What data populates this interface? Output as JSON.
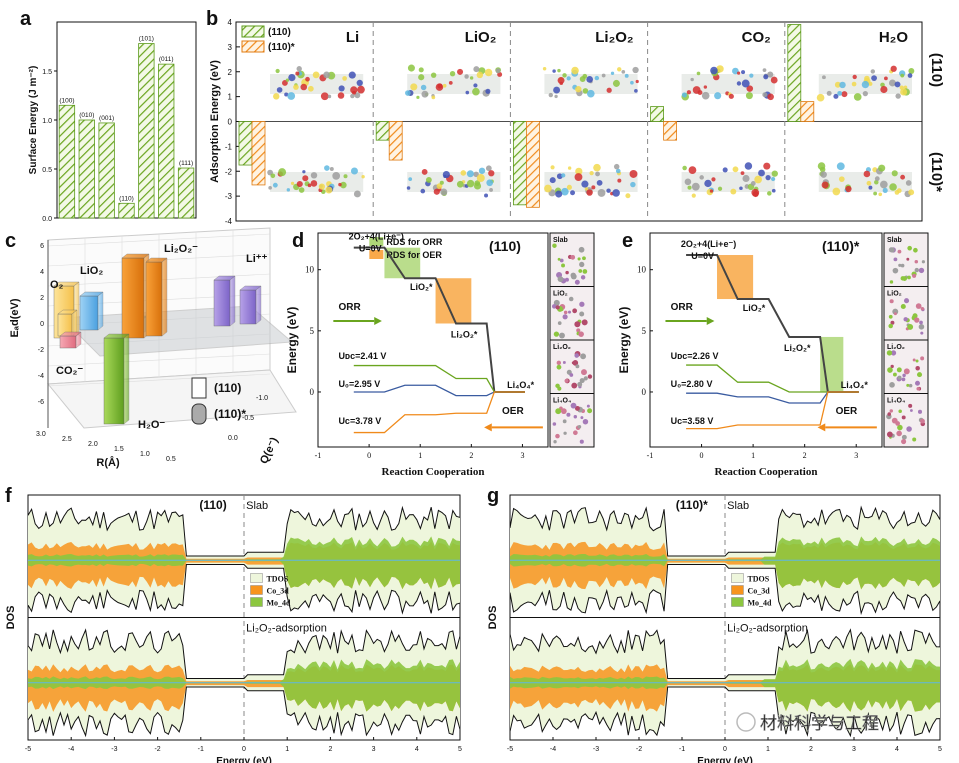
{
  "figure": {
    "watermark": "材料科学与工程",
    "panel_labels": [
      "a",
      "b",
      "c",
      "d",
      "e",
      "f",
      "g"
    ]
  },
  "colors": {
    "green": "#8cc63f",
    "orange": "#f7941d",
    "blue": "#3a5ba0",
    "grey": "#9e9e9e",
    "tdos_fill": "#eef6dc"
  },
  "chart_data": [
    {
      "id": "a",
      "type": "bar",
      "ylabel": "Surface Energy (J m⁻²)",
      "categories": [
        "(100)",
        "(010)",
        "(001)",
        "(110)",
        "(101)",
        "(011)",
        "(111)"
      ],
      "values": [
        1.15,
        1.0,
        0.97,
        0.15,
        1.78,
        1.57,
        0.51
      ],
      "ylim": [
        0,
        2.0
      ],
      "yticks": [
        "0.0",
        "0.5",
        "1.0",
        "1.5"
      ]
    },
    {
      "id": "b",
      "type": "bar",
      "ylabel": "Adsorption Energy (eV)",
      "columns": [
        "Li",
        "LiO₂",
        "Li₂O₂",
        "CO₂",
        "H₂O"
      ],
      "legend": [
        "(110)",
        "(110)*"
      ],
      "rows": [
        "(110)",
        "(110)*"
      ],
      "series": [
        {
          "name": "(110)",
          "values": [
            -1.75,
            -0.75,
            -3.35,
            0.6,
            3.9
          ]
        },
        {
          "name": "(110)*",
          "values": [
            -2.55,
            -1.55,
            -3.45,
            -0.75,
            0.8
          ]
        }
      ],
      "yticks": [
        "4",
        "3",
        "2",
        "1",
        "0",
        "-1",
        "-2",
        "-3",
        "-4"
      ]
    },
    {
      "id": "c",
      "type": "bar",
      "zlabel": "Eₐd(eV)",
      "xlabel": "R(Å)",
      "ylabel": "Q(e⁻)",
      "labels": [
        "O₂",
        "LiO₂",
        "Li₂O₂⁻",
        "Li⁺⁺",
        "CO₂⁻",
        "H₂O⁻"
      ],
      "legend": [
        "(110)",
        "(110)*"
      ],
      "zticks": [
        "6",
        "4",
        "2",
        "0",
        "-2",
        "-4",
        "-6"
      ],
      "xticks": [
        "3.0",
        "2.5",
        "2.0",
        "1.5",
        "1.0",
        "0.5"
      ],
      "yticks": [
        "0.0",
        "-0.5",
        "-1.0"
      ]
    },
    {
      "id": "d",
      "type": "line",
      "title": "(110)",
      "xlabel": "Reaction Cooperation",
      "ylabel": "Energy (eV)",
      "xlim": [
        -1,
        3.5
      ],
      "ylim": [
        -4.5,
        13
      ],
      "xticks": [
        "-1",
        "0",
        "1",
        "2",
        "3"
      ],
      "yticks": [
        "0",
        "5",
        "10"
      ],
      "start_label": "2O₂+4(Li+e⁻)",
      "u_label": "U=0V",
      "species": [
        "LiO₂*",
        "Li₂O₂*",
        "Li₄O₄*"
      ],
      "legend": [
        "RDS for ORR",
        "RDS for OER"
      ],
      "orr_label": "ORR",
      "oer_label": "OER",
      "potentials": [
        "Uᴅᴄ=2.41 V",
        "U₀=2.95 V",
        "Uᴄ=3.78 V"
      ],
      "thumb_labels": [
        "Slab",
        "LiO₂",
        "Li₂O₂",
        "Li₄O₄"
      ],
      "series": [
        {
          "name": "U=0V",
          "values": [
            11.8,
            9.3,
            5.6,
            0
          ]
        },
        {
          "name": "U_DC",
          "values": [
            2.16,
            2.16,
            1.1,
            0
          ]
        },
        {
          "name": "U_0",
          "values": [
            0.0,
            0.55,
            -0.3,
            0
          ]
        },
        {
          "name": "U_C",
          "values": [
            -3.32,
            -1.86,
            -1.74,
            0
          ]
        }
      ]
    },
    {
      "id": "e",
      "type": "line",
      "title": "(110)*",
      "xlabel": "Reaction Cooperation",
      "ylabel": "Energy (eV)",
      "xlim": [
        -1,
        3.5
      ],
      "ylim": [
        -4.5,
        13
      ],
      "xticks": [
        "-1",
        "0",
        "1",
        "2",
        "3"
      ],
      "yticks": [
        "0",
        "5",
        "10"
      ],
      "start_label": "2O₂+4(Li+e⁻)",
      "u_label": "U=0V",
      "species": [
        "LiO₂*",
        "Li₂O₂*",
        "Li₄O₄*"
      ],
      "orr_label": "ORR",
      "oer_label": "OER",
      "potentials": [
        "Uᴅᴄ=2.26 V",
        "U₀=2.80 V",
        "Uᴄ=3.58 V"
      ],
      "thumb_labels": [
        "Slab",
        "LiO₂",
        "Li₂O₂",
        "Li₄O₄"
      ],
      "series": [
        {
          "name": "U=0V",
          "values": [
            11.2,
            7.6,
            4.5,
            0
          ]
        },
        {
          "name": "U_DC",
          "values": [
            2.2,
            0.8,
            0.0,
            0
          ]
        },
        {
          "name": "U_0",
          "values": [
            -0.1,
            -0.4,
            -0.9,
            0
          ]
        },
        {
          "name": "U_C",
          "values": [
            -3.0,
            -2.7,
            -2.7,
            0
          ]
        }
      ]
    },
    {
      "id": "f",
      "type": "area",
      "xlabel": "Energy (eV)",
      "ylabel": "DOS",
      "xlim": [
        -5,
        5
      ],
      "xticks": [
        "-5",
        "-4",
        "-3",
        "-2",
        "-1",
        "0",
        "1",
        "2",
        "3",
        "4",
        "5"
      ],
      "top_title": "(110)",
      "top_note": "Slab",
      "bottom_note": "Li₂O₂-adsorption",
      "legend": [
        "TDOS",
        "Co_3d",
        "Mo_4d"
      ]
    },
    {
      "id": "g",
      "type": "area",
      "xlabel": "Energy (eV)",
      "ylabel": "DOS",
      "xlim": [
        -5,
        5
      ],
      "xticks": [
        "-5",
        "-4",
        "-3",
        "-2",
        "-1",
        "0",
        "1",
        "2",
        "3",
        "4",
        "5"
      ],
      "top_title": "(110)*",
      "top_note": "Slab",
      "bottom_note": "Li₂O₂-adsorption",
      "legend": [
        "TDOS",
        "Co_3d",
        "Mo_4d"
      ]
    }
  ]
}
